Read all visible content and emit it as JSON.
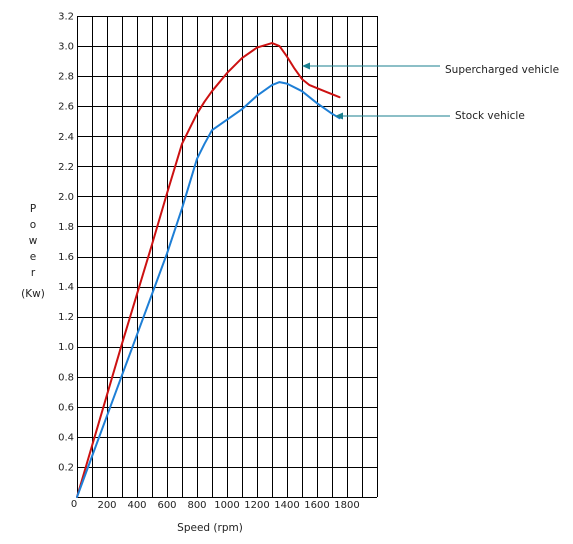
{
  "chart_data": {
    "type": "line",
    "title": "",
    "xlabel": "Speed (rpm)",
    "ylabel_chars": [
      "P",
      "o",
      "w",
      "e",
      "r"
    ],
    "ylabel_unit": "(Kw)",
    "xlim": [
      0,
      2000
    ],
    "ylim": [
      0,
      3.2
    ],
    "x_ticks": [
      0,
      200,
      400,
      600,
      800,
      1000,
      1200,
      1400,
      1600,
      1800
    ],
    "x_tick_labels": [
      "0",
      "200",
      "400",
      "600",
      "800",
      "1000",
      "1200",
      "1400",
      "1600",
      "1800"
    ],
    "y_ticks": [
      0.2,
      0.4,
      0.6,
      0.8,
      1.0,
      1.2,
      1.4,
      1.6,
      1.8,
      2.0,
      2.2,
      2.4,
      2.6,
      2.8,
      3.0,
      3.2
    ],
    "y_tick_labels": [
      "0.2",
      "0.4",
      "0.6",
      "0.8",
      "1.0",
      "1.2",
      "1.4",
      "1.6",
      "1.8",
      "2.0",
      "2.2",
      "2.4",
      "2.6",
      "2.8",
      "3.0",
      "3.2"
    ],
    "origin_label": "0",
    "grid": true,
    "legend_placement": "right, annotated with arrows",
    "series": [
      {
        "name": "Supercharged vehicle",
        "color": "#cc1111",
        "x": [
          0,
          100,
          200,
          300,
          400,
          500,
          600,
          700,
          800,
          850,
          900,
          1000,
          1100,
          1200,
          1300,
          1350,
          1400,
          1450,
          1500,
          1550,
          1650,
          1750
        ],
        "y": [
          0,
          0.34,
          0.68,
          1.02,
          1.35,
          1.68,
          2.02,
          2.35,
          2.55,
          2.63,
          2.7,
          2.82,
          2.92,
          2.99,
          3.02,
          3.0,
          2.93,
          2.85,
          2.78,
          2.74,
          2.7,
          2.66
        ]
      },
      {
        "name": "Stock vehicle",
        "color": "#1e7fd6",
        "x": [
          0,
          100,
          200,
          300,
          400,
          500,
          600,
          700,
          800,
          850,
          900,
          1000,
          1100,
          1200,
          1300,
          1350,
          1400,
          1500,
          1600,
          1700,
          1750
        ],
        "y": [
          0,
          0.27,
          0.54,
          0.81,
          1.08,
          1.35,
          1.62,
          1.92,
          2.25,
          2.35,
          2.44,
          2.51,
          2.58,
          2.67,
          2.74,
          2.76,
          2.75,
          2.7,
          2.62,
          2.55,
          2.52
        ]
      }
    ]
  }
}
